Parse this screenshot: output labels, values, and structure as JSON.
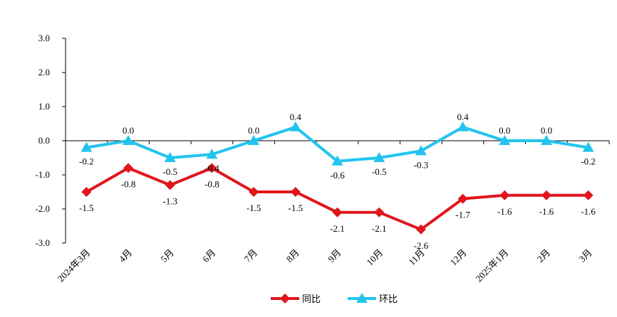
{
  "chart_data": {
    "type": "line",
    "categories": [
      "2024年3月",
      "4月",
      "5月",
      "6月",
      "7月",
      "8月",
      "9月",
      "10月",
      "11月",
      "12月",
      "2025年1月",
      "2月",
      "3月"
    ],
    "ylim": [
      -3.0,
      3.0
    ],
    "yticks": [
      "3.0",
      "2.0",
      "1.0",
      "0.0",
      "-1.0",
      "-2.0",
      "-3.0"
    ],
    "grid": false,
    "legend_position": "bottom",
    "series": [
      {
        "name": "同比",
        "color": "#e0161c",
        "marker": "diamond",
        "values": [
          -1.5,
          -0.8,
          -1.3,
          -0.8,
          -1.5,
          -1.5,
          -2.1,
          -2.1,
          -2.6,
          -1.7,
          -1.6,
          -1.6,
          -1.6
        ],
        "labels": [
          "-1.5",
          "-0.8",
          "-1.3",
          "-0.8",
          "-1.5",
          "-1.5",
          "-2.1",
          "-2.1",
          "-2.6",
          "-1.7",
          "-1.6",
          "-1.6",
          "-1.6"
        ]
      },
      {
        "name": "环比",
        "color": "#22c4ef",
        "marker": "triangle",
        "values": [
          -0.2,
          0.0,
          -0.5,
          -0.4,
          0.0,
          0.4,
          -0.6,
          -0.5,
          -0.3,
          0.4,
          0.0,
          0.0,
          -0.2
        ],
        "labels": [
          "-0.2",
          "0.0",
          "-0.5",
          "-0.4",
          "0.0",
          "0.4",
          "-0.6",
          "-0.5",
          "-0.3",
          "0.4",
          "0.0",
          "0.0",
          "-0.2"
        ]
      }
    ]
  }
}
